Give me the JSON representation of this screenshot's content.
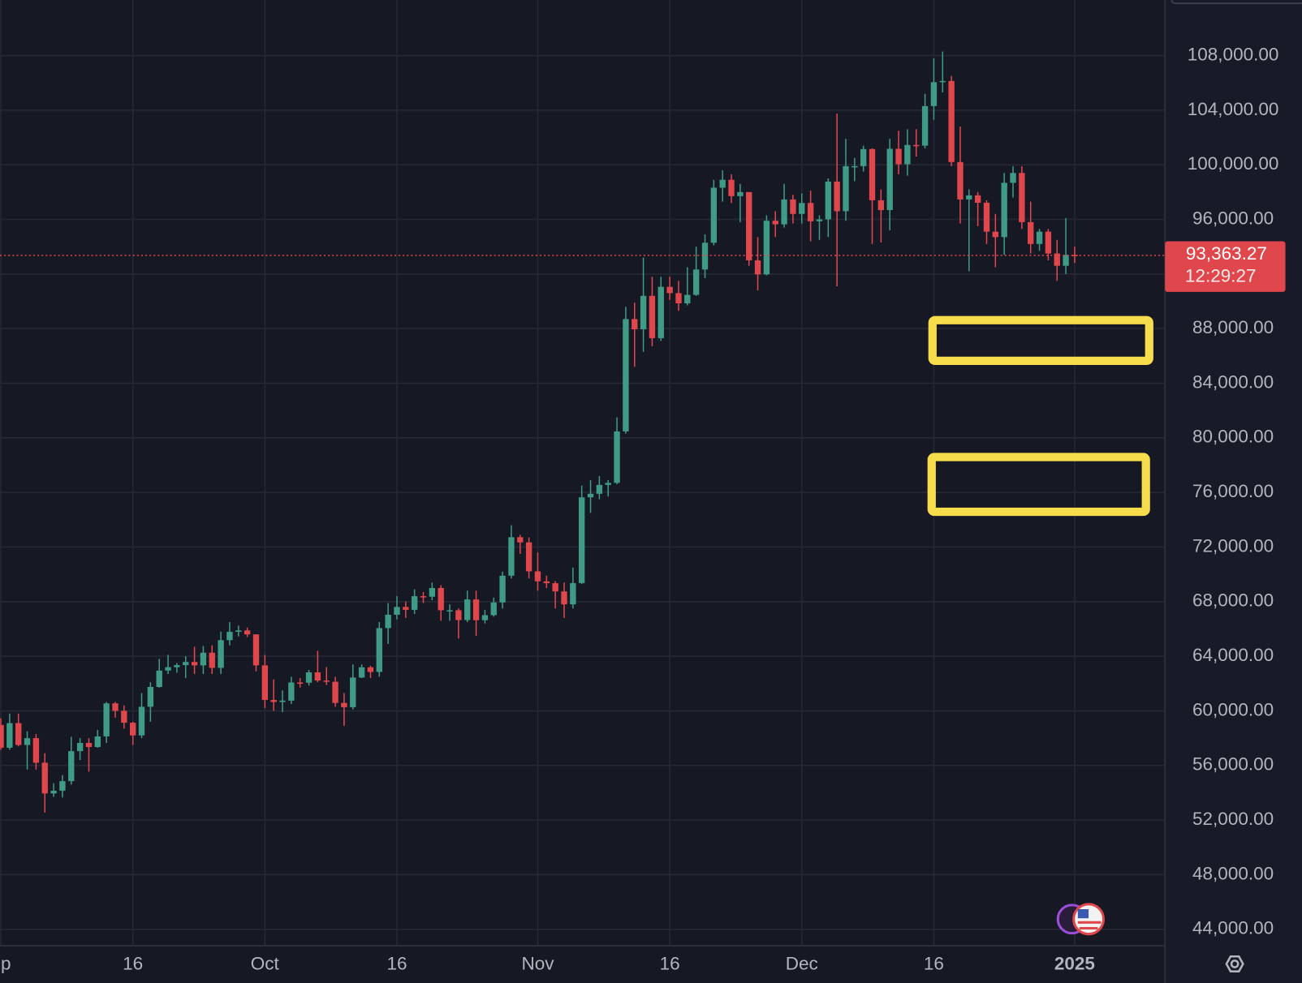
{
  "chart_data": {
    "type": "candlestick",
    "categories": [
      "ep",
      null,
      null,
      null,
      null,
      null,
      null,
      null,
      null,
      null,
      null,
      null,
      null,
      null,
      null,
      "16",
      null,
      null,
      null,
      null,
      null,
      null,
      null,
      null,
      null,
      null,
      null,
      null,
      null,
      null,
      "Oct",
      null,
      null,
      null,
      null,
      null,
      null,
      null,
      null,
      null,
      null,
      null,
      null,
      null,
      null,
      "16",
      null,
      null,
      null,
      null,
      null,
      null,
      null,
      null,
      null,
      null,
      null,
      null,
      null,
      null,
      null,
      "Nov",
      null,
      null,
      null,
      null,
      null,
      null,
      null,
      null,
      null,
      null,
      null,
      null,
      null,
      null,
      "16",
      null,
      null,
      null,
      null,
      null,
      null,
      null,
      null,
      null,
      null,
      null,
      null,
      null,
      null,
      "Dec",
      null,
      null,
      null,
      null,
      null,
      null,
      null,
      null,
      null,
      null,
      null,
      null,
      null,
      null,
      "16",
      null,
      null,
      null,
      null,
      null,
      null,
      null,
      null,
      null,
      null,
      null,
      null,
      null,
      null,
      null,
      "2025"
    ],
    "open": [
      58970,
      57300,
      59100,
      57500,
      58000,
      56200,
      53950,
      54150,
      54850,
      57050,
      57650,
      57350,
      58130,
      60550,
      60000,
      59130,
      58200,
      60300,
      61750,
      62950,
      63200,
      63350,
      63580,
      63330,
      64260,
      63150,
      65180,
      65790,
      65890,
      65600,
      63330,
      60800,
      60650,
      60750,
      62080,
      62060,
      62820,
      62220,
      62130,
      60580,
      60270,
      62440,
      63190,
      62850,
      66060,
      67040,
      67610,
      67400,
      68400,
      68360,
      69000,
      67370,
      67370,
      66650,
      68160,
      66640,
      67010,
      67940,
      69900,
      72720,
      72340,
      70220,
      69490,
      69350,
      68750,
      67800,
      69360,
      75640,
      75900,
      76550,
      76700,
      80470,
      88700,
      87950,
      90400,
      87300,
      91060,
      90600,
      89850,
      90470,
      92330,
      94290,
      98320,
      98900,
      97700,
      98000,
      93000,
      91970,
      95900,
      95640,
      97460,
      96400,
      97200,
      95860,
      96000,
      98770,
      96600,
      99900,
      99900,
      101150,
      97400,
      96680,
      101170,
      100040,
      101450,
      101400,
      104300,
      106050,
      106140,
      100200,
      97460,
      97760,
      97220,
      95100,
      94700,
      98680,
      99400,
      95800,
      94200,
      95100,
      93500,
      92600,
      93400
    ],
    "high": [
      59450,
      59800,
      59800,
      58500,
      58300,
      56900,
      54700,
      55300,
      58100,
      58000,
      58000,
      58600,
      60650,
      60650,
      60400,
      59200,
      61300,
      62100,
      63800,
      64100,
      63500,
      64000,
      64700,
      64750,
      64800,
      65800,
      66500,
      66250,
      66100,
      65600,
      64100,
      62300,
      61500,
      62500,
      62400,
      63000,
      64400,
      63200,
      62500,
      61300,
      63400,
      63400,
      63300,
      66500,
      67900,
      68400,
      68000,
      68900,
      68700,
      69400,
      69200,
      67800,
      67500,
      68800,
      68800,
      67400,
      68300,
      70200,
      73600,
      72900,
      72700,
      71600,
      69900,
      69500,
      69400,
      70500,
      76500,
      76900,
      77200,
      76900,
      81500,
      89600,
      89900,
      93200,
      91800,
      91800,
      91800,
      91500,
      92500,
      94000,
      94900,
      98900,
      99600,
      99300,
      98600,
      98000,
      94700,
      96300,
      96600,
      98600,
      97800,
      97900,
      98100,
      96300,
      99000,
      103750,
      101900,
      100500,
      101400,
      101200,
      98200,
      101900,
      102500,
      102600,
      102600,
      105200,
      107800,
      108300,
      106500,
      102800,
      98200,
      98000,
      97400,
      96400,
      99400,
      99900,
      99900,
      97300,
      95300,
      95300,
      94500,
      96100,
      94000
    ],
    "low": [
      57150,
      57150,
      57400,
      55700,
      55700,
      52550,
      53700,
      53650,
      54600,
      56400,
      55550,
      57300,
      57650,
      59500,
      58700,
      57500,
      58000,
      59200,
      61700,
      62700,
      62800,
      62400,
      62700,
      62700,
      62700,
      62700,
      64800,
      65450,
      65400,
      62900,
      60200,
      60000,
      59900,
      60500,
      61700,
      61850,
      62100,
      61900,
      60300,
      58900,
      60100,
      62400,
      62400,
      62500,
      64900,
      66700,
      66800,
      67100,
      67900,
      68100,
      66600,
      66600,
      65300,
      66500,
      65500,
      66400,
      66900,
      67500,
      69700,
      71500,
      69700,
      68800,
      69000,
      67500,
      66800,
      67500,
      69300,
      74500,
      75500,
      75700,
      76600,
      80300,
      85200,
      86300,
      86700,
      87100,
      90100,
      89300,
      89700,
      90400,
      91700,
      94100,
      97300,
      97200,
      95800,
      92600,
      90800,
      91900,
      94700,
      95400,
      95700,
      95700,
      94400,
      94500,
      94700,
      91100,
      95900,
      98800,
      99500,
      94200,
      94300,
      95200,
      99300,
      99200,
      100600,
      101200,
      103300,
      105300,
      99900,
      95700,
      92200,
      95500,
      94200,
      92500,
      93400,
      97600,
      95300,
      93500,
      93700,
      93000,
      91500,
      92000,
      92800
    ],
    "close": [
      57300,
      59100,
      57500,
      58000,
      56200,
      53950,
      54150,
      54850,
      57050,
      57650,
      57350,
      58130,
      60550,
      60000,
      59130,
      58200,
      60300,
      61750,
      62950,
      63200,
      63350,
      63580,
      63330,
      64260,
      63150,
      65180,
      65790,
      65890,
      65600,
      63330,
      60800,
      60650,
      60750,
      62080,
      62060,
      62820,
      62220,
      62130,
      60580,
      60270,
      62440,
      63190,
      62850,
      66060,
      67040,
      67610,
      67400,
      68400,
      68360,
      69000,
      67370,
      67370,
      66650,
      68160,
      66640,
      67010,
      67940,
      69900,
      72720,
      72340,
      70220,
      69490,
      69350,
      68750,
      67800,
      69360,
      75640,
      75900,
      76550,
      76700,
      80470,
      88700,
      87950,
      90400,
      87300,
      91060,
      90600,
      89850,
      90470,
      92330,
      94290,
      98320,
      98900,
      97700,
      98000,
      93000,
      91970,
      95900,
      95640,
      97460,
      96400,
      97200,
      95860,
      96000,
      98770,
      96600,
      99900,
      99900,
      101150,
      97400,
      96680,
      101170,
      100040,
      101450,
      101400,
      104300,
      106050,
      106140,
      100200,
      97460,
      97760,
      97220,
      95100,
      94700,
      98680,
      99400,
      95800,
      94200,
      95100,
      93500,
      92600,
      93400,
      93363.27
    ],
    "up_color": "#3f9a86",
    "down_color": "#e0474c",
    "ylim": [
      42800,
      112070
    ],
    "yticks": [
      {
        "value": 108000,
        "label": "108,000.00"
      },
      {
        "value": 104000,
        "label": "104,000.00"
      },
      {
        "value": 100000,
        "label": "100,000.00"
      },
      {
        "value": 96000,
        "label": "96,000.00"
      },
      {
        "value": 92000,
        "label": "92,000.00"
      },
      {
        "value": 88000,
        "label": "88,000.00"
      },
      {
        "value": 84000,
        "label": "84,000.00"
      },
      {
        "value": 80000,
        "label": "80,000.00"
      },
      {
        "value": 76000,
        "label": "76,000.00"
      },
      {
        "value": 72000,
        "label": "72,000.00"
      },
      {
        "value": 68000,
        "label": "68,000.00"
      },
      {
        "value": 64000,
        "label": "64,000.00"
      },
      {
        "value": 60000,
        "label": "60,000.00"
      },
      {
        "value": 56000,
        "label": "56,000.00"
      },
      {
        "value": 52000,
        "label": "52,000.00"
      },
      {
        "value": 48000,
        "label": "48,000.00"
      },
      {
        "value": 44000,
        "label": "44,000.00"
      }
    ],
    "grid": true,
    "last_price": {
      "value": 93363.27,
      "label": "93,363.27",
      "color": "#e0474c"
    },
    "countdown": "12:29:27",
    "annotations": [
      {
        "type": "box",
        "color": "#f7dc4b",
        "ylim": [
          85640,
          88620
        ]
      },
      {
        "type": "box",
        "color": "#f7dc4b",
        "ylim": [
          74580,
          78590
        ]
      }
    ]
  }
}
